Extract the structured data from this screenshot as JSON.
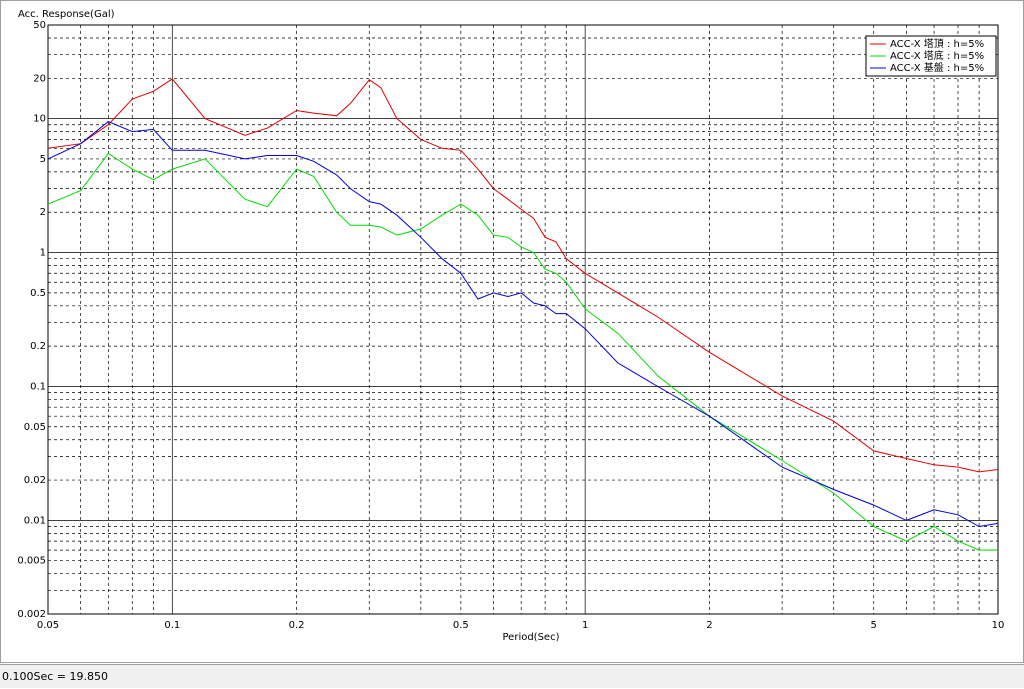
{
  "chart_data": {
    "type": "line",
    "log_x": true,
    "log_y": true,
    "grid": true,
    "legend": "upper right",
    "title": "Acc. Response(Gal)",
    "x_label": "Period(Sec)",
    "xlim": [
      0.05,
      10
    ],
    "xticks": [
      0.05,
      0.1,
      0.2,
      0.5,
      1,
      2,
      5,
      10
    ],
    "ylim": [
      0.002,
      50
    ],
    "yticks": [
      50,
      20,
      10,
      5,
      2,
      1,
      0.5,
      0.2,
      0.1,
      0.05,
      0.02,
      0.01,
      0.005,
      0.002
    ],
    "x": [
      0.05,
      0.06,
      0.07,
      0.08,
      0.09,
      0.1,
      0.12,
      0.15,
      0.17,
      0.2,
      0.22,
      0.25,
      0.27,
      0.3,
      0.32,
      0.35,
      0.4,
      0.45,
      0.5,
      0.55,
      0.6,
      0.65,
      0.7,
      0.75,
      0.8,
      0.85,
      0.9,
      1.0,
      1.2,
      1.5,
      2,
      3,
      4,
      5,
      6,
      7,
      8,
      9,
      10
    ],
    "series": [
      {
        "name": "ACC-X 塔頂 : h=5%",
        "color": "#e00000",
        "values": [
          6,
          6.5,
          9,
          14,
          16,
          19.8,
          10,
          7.5,
          8.5,
          11.5,
          11,
          10.5,
          13,
          19.5,
          17,
          10,
          7,
          6,
          5.8,
          4.2,
          3,
          2.5,
          2.1,
          1.8,
          1.3,
          1.2,
          0.9,
          0.7,
          0.5,
          0.33,
          0.18,
          0.085,
          0.055,
          0.033,
          0.029,
          0.026,
          0.025,
          0.023,
          0.024
        ]
      },
      {
        "name": "ACC-X 塔底 : h=5%",
        "color": "#00dd00",
        "values": [
          2.3,
          2.9,
          5.5,
          4.2,
          3.5,
          4.2,
          5,
          2.5,
          2.2,
          4.2,
          3.7,
          2,
          1.6,
          1.6,
          1.55,
          1.35,
          1.5,
          1.9,
          2.3,
          1.9,
          1.35,
          1.3,
          1.1,
          1.0,
          0.75,
          0.7,
          0.6,
          0.38,
          0.25,
          0.12,
          0.06,
          0.028,
          0.016,
          0.009,
          0.007,
          0.009,
          0.007,
          0.006,
          0.006
        ]
      },
      {
        "name": "ACC-X 基盤 : h=5%",
        "color": "#0000dd",
        "values": [
          5,
          6.5,
          9.5,
          8,
          8.3,
          5.8,
          5.8,
          5,
          5.3,
          5.3,
          4.8,
          3.8,
          3,
          2.4,
          2.3,
          1.9,
          1.3,
          0.9,
          0.7,
          0.45,
          0.5,
          0.47,
          0.5,
          0.42,
          0.4,
          0.35,
          0.35,
          0.27,
          0.15,
          0.1,
          0.06,
          0.025,
          0.017,
          0.013,
          0.01,
          0.012,
          0.011,
          0.009,
          0.0095
        ]
      }
    ]
  },
  "status_bar": {
    "text": "0.100Sec = 19.850"
  }
}
